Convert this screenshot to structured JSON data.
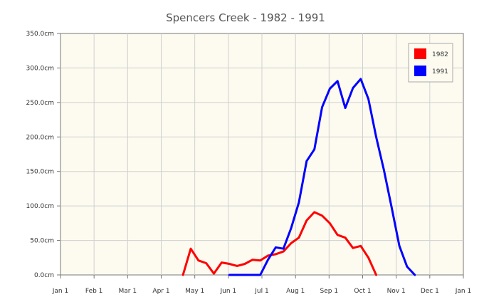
{
  "chart_data": {
    "type": "line",
    "title": "Spencers Creek - 1982 - 1991",
    "xlabel": "",
    "ylabel": "",
    "x_ticks": [
      "Jan 1",
      "Feb 1",
      "Mar 1",
      "Apr 1",
      "May 1",
      "Jun 1",
      "Jul 1",
      "Aug 1",
      "Sep 1",
      "Oct 1",
      "Nov 1",
      "Dec 1",
      "Jan 1"
    ],
    "y_ticks": [
      "0.0cm",
      "50.0cm",
      "100.0cm",
      "150.0cm",
      "200.0cm",
      "250.0cm",
      "300.0cm",
      "350.0cm"
    ],
    "ylim": [
      0,
      350
    ],
    "grid": true,
    "legend_position": "top-right",
    "background": "#fdfbf0",
    "series": [
      {
        "name": "1982",
        "color": "#ff0000",
        "points": [
          [
            "Apr 22",
            0
          ],
          [
            "Apr 29",
            38
          ],
          [
            "May 6",
            21
          ],
          [
            "May 13",
            17
          ],
          [
            "May 20",
            2
          ],
          [
            "May 27",
            18
          ],
          [
            "Jun 3",
            16
          ],
          [
            "Jun 10",
            13
          ],
          [
            "Jun 17",
            16
          ],
          [
            "Jun 24",
            22
          ],
          [
            "Jul 1",
            21
          ],
          [
            "Jul 8",
            28
          ],
          [
            "Jul 15",
            30
          ],
          [
            "Jul 22",
            34
          ],
          [
            "Jul 29",
            46
          ],
          [
            "Aug 5",
            54
          ],
          [
            "Aug 12",
            79
          ],
          [
            "Aug 19",
            91
          ],
          [
            "Aug 26",
            86
          ],
          [
            "Sep 2",
            75
          ],
          [
            "Sep 9",
            58
          ],
          [
            "Sep 16",
            54
          ],
          [
            "Sep 23",
            39
          ],
          [
            "Sep 30",
            42
          ],
          [
            "Oct 7",
            25
          ],
          [
            "Oct 14",
            0
          ]
        ]
      },
      {
        "name": "1991",
        "color": "#0000ff",
        "points": [
          [
            "Jun 3",
            0
          ],
          [
            "Jun 10",
            0
          ],
          [
            "Jun 17",
            0
          ],
          [
            "Jun 24",
            0
          ],
          [
            "Jul 1",
            0
          ],
          [
            "Jul 8",
            22
          ],
          [
            "Jul 15",
            40
          ],
          [
            "Jul 22",
            38
          ],
          [
            "Jul 29",
            68
          ],
          [
            "Aug 5",
            105
          ],
          [
            "Aug 12",
            165
          ],
          [
            "Aug 19",
            182
          ],
          [
            "Aug 26",
            243
          ],
          [
            "Sep 2",
            270
          ],
          [
            "Sep 9",
            281
          ],
          [
            "Sep 16",
            242
          ],
          [
            "Sep 23",
            271
          ],
          [
            "Sep 30",
            284
          ],
          [
            "Oct 7",
            255
          ],
          [
            "Oct 14",
            200
          ],
          [
            "Oct 21",
            152
          ],
          [
            "Oct 28",
            98
          ],
          [
            "Nov 4",
            42
          ],
          [
            "Nov 11",
            12
          ],
          [
            "Nov 18",
            0
          ]
        ]
      }
    ]
  }
}
